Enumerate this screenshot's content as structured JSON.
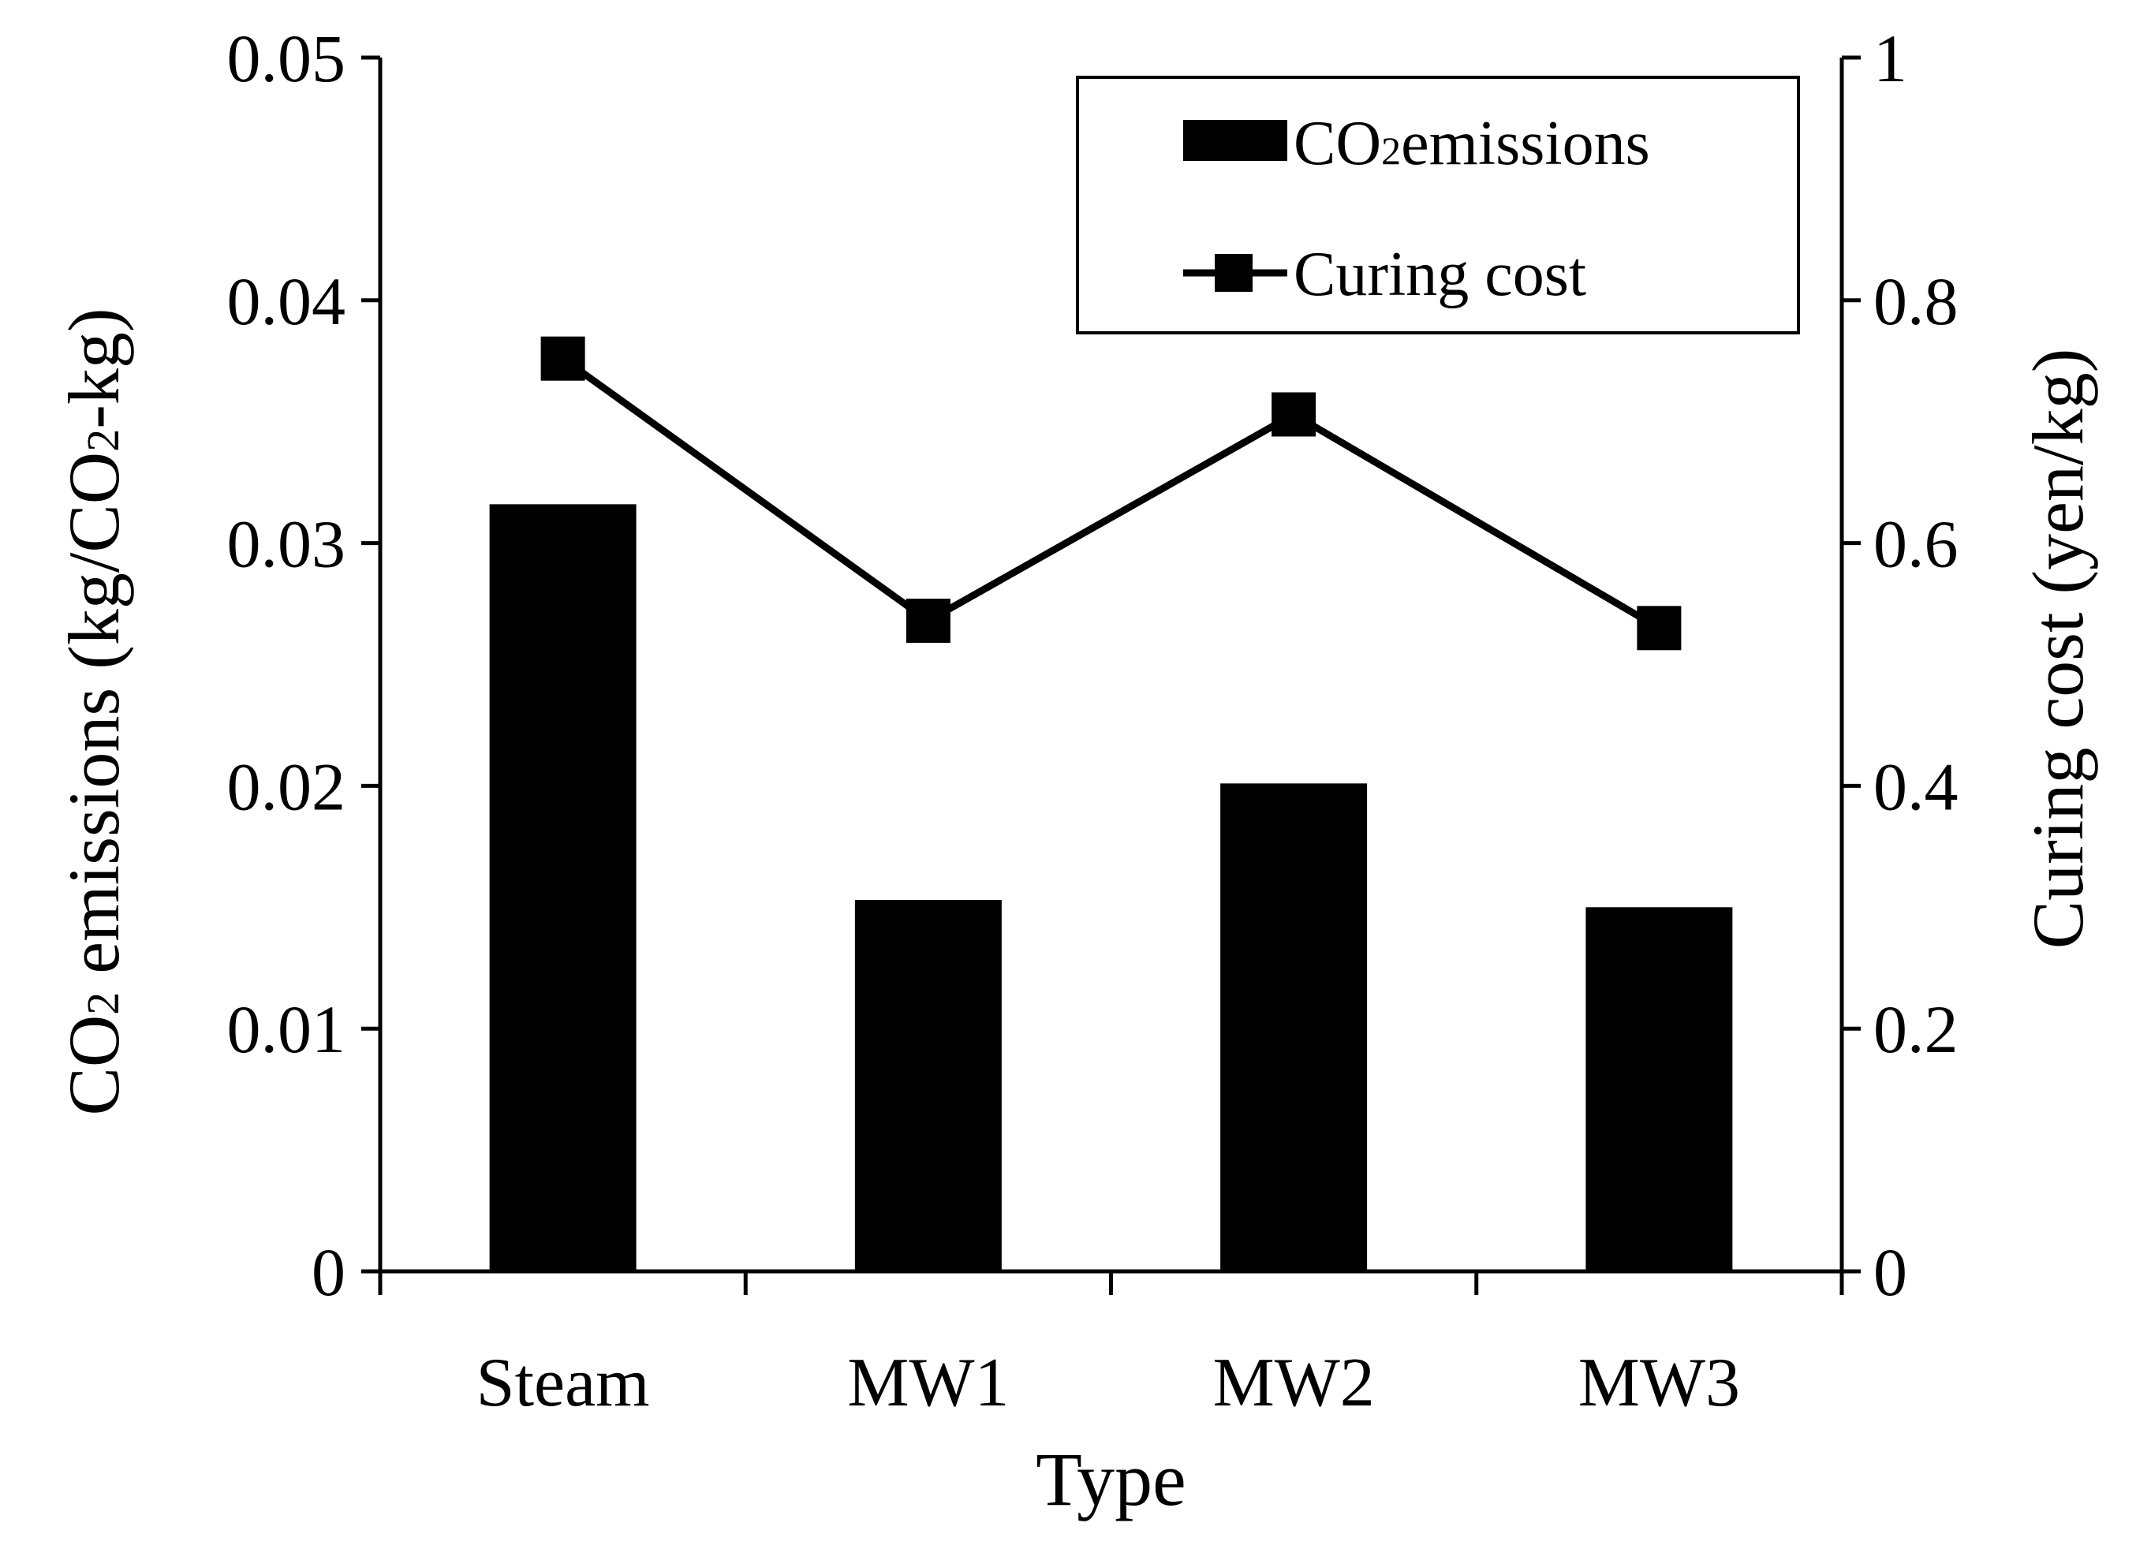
{
  "chart_data": {
    "type": "bar",
    "categories": [
      "Steam",
      "MW1",
      "MW2",
      "MW3"
    ],
    "xlabel": "Type",
    "ylabel_left_main": "CO",
    "ylabel_left_sub": "2",
    "ylabel_left_rest": " emissions (kg/CO",
    "ylabel_left_sub2": "2",
    "ylabel_left_end": "-kg)",
    "ylabel_right": "Curing cost (yen/kg)",
    "ylim_left": [
      0,
      0.05
    ],
    "ylim_right": [
      0,
      1
    ],
    "yticks_left": [
      "0",
      "0.01",
      "0.02",
      "0.03",
      "0.04",
      "0.05"
    ],
    "yticks_right": [
      "0",
      "0.2",
      "0.4",
      "0.6",
      "0.8",
      "1"
    ],
    "series": [
      {
        "name": "CO2emissions",
        "legend_main": "CO",
        "legend_sub": "2",
        "legend_rest": "emissions",
        "kind": "bar",
        "axis": "left",
        "values": [
          0.0316,
          0.0153,
          0.0201,
          0.015
        ],
        "color": "#000000"
      },
      {
        "name": "Curing cost",
        "legend_label": "Curing cost",
        "kind": "line",
        "axis": "right",
        "values": [
          0.752,
          0.536,
          0.706,
          0.53
        ],
        "color": "#000000"
      }
    ],
    "legend_position": "top-right"
  }
}
